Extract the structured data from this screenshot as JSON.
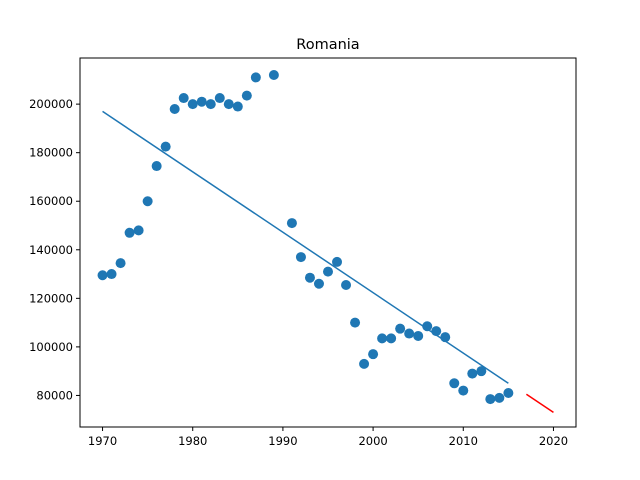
{
  "chart_data": {
    "type": "scatter",
    "title": "Romania",
    "xlabel": "",
    "ylabel": "",
    "xlim": [
      1967.5,
      2022.5
    ],
    "ylim": [
      67000,
      219000
    ],
    "xticks": [
      1970,
      1980,
      1990,
      2000,
      2010,
      2020
    ],
    "yticks": [
      80000,
      100000,
      120000,
      140000,
      160000,
      180000,
      200000
    ],
    "grid": false,
    "colors": {
      "points": "#1f77b4",
      "trend": "#1f77b4",
      "forecast": "#ff0000"
    },
    "points": {
      "x": [
        1970,
        1971,
        1972,
        1973,
        1974,
        1975,
        1976,
        1977,
        1978,
        1979,
        1980,
        1981,
        1982,
        1983,
        1984,
        1985,
        1986,
        1987,
        1989,
        1991,
        1992,
        1993,
        1994,
        1995,
        1996,
        1997,
        1998,
        1999,
        2000,
        2001,
        2002,
        2003,
        2004,
        2005,
        2006,
        2007,
        2008,
        2009,
        2010,
        2011,
        2012,
        2013,
        2014,
        2015
      ],
      "y": [
        129500,
        130000,
        134500,
        147000,
        148000,
        160000,
        174500,
        182500,
        198000,
        202500,
        200000,
        201000,
        200000,
        202500,
        200000,
        199000,
        203500,
        211000,
        212000,
        151000,
        137000,
        128500,
        126000,
        131000,
        135000,
        125500,
        110000,
        93000,
        97000,
        103500,
        103500,
        107500,
        105500,
        104500,
        108500,
        106500,
        104000,
        85000,
        82000,
        89000,
        90000,
        78500,
        79000,
        81000
      ]
    },
    "trend_line": {
      "x": [
        1970,
        2015
      ],
      "y": [
        197000,
        85000
      ]
    },
    "forecast_line": {
      "x": [
        2017,
        2020
      ],
      "y": [
        80500,
        73000
      ]
    }
  }
}
